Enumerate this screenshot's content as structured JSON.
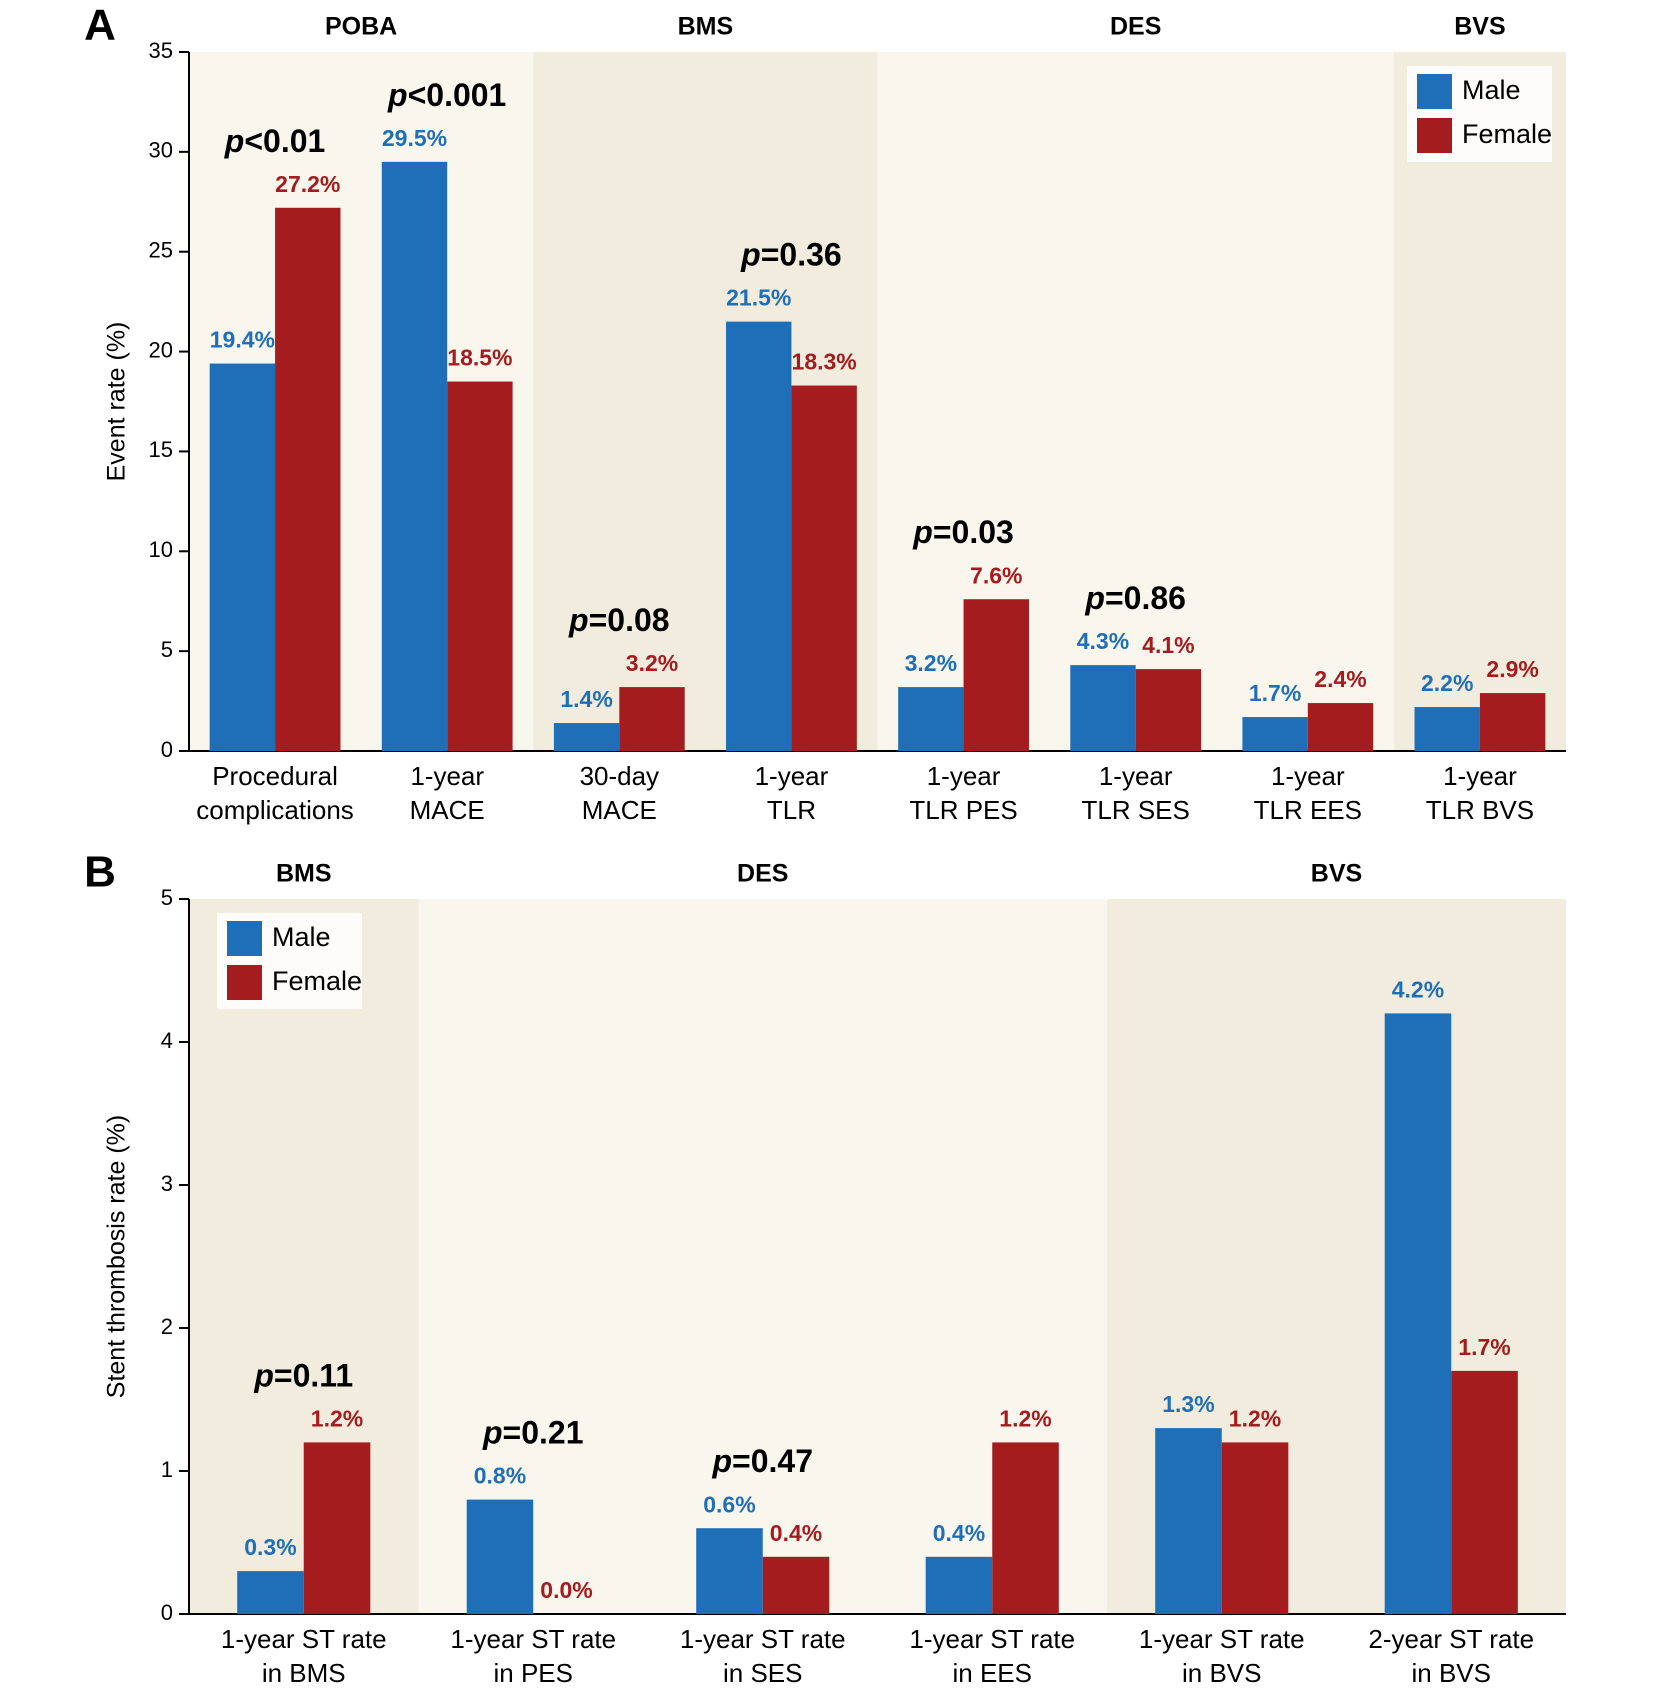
{
  "chart_data": [
    {
      "type": "bar",
      "panel": "A",
      "ylabel": "Event rate (%)",
      "groups": [
        {
          "label": "POBA",
          "color": "#f9f6ee",
          "categories": [
            [
              "Procedural",
              "complications"
            ],
            [
              "1-year",
              "MACE"
            ]
          ]
        },
        {
          "label": "BMS",
          "color": "#f1ecdd",
          "categories": [
            [
              "30-day",
              "MACE"
            ],
            [
              "1-year",
              "TLR"
            ]
          ]
        },
        {
          "label": "DES",
          "color": "#f9f6ee",
          "categories": [
            [
              "1-year",
              "TLR PES"
            ],
            [
              "1-year",
              "TLR SES"
            ],
            [
              "1-year",
              "TLR EES"
            ]
          ]
        },
        {
          "label": "BVS",
          "color": "#f1ecdd",
          "categories": [
            [
              "1-year",
              "TLR BVS"
            ]
          ]
        }
      ],
      "series": [
        {
          "name": "Male",
          "color": "#1f6fb8",
          "values": [
            19.4,
            29.5,
            1.4,
            21.5,
            3.2,
            4.3,
            1.7,
            2.2
          ],
          "value_labels": [
            "19.4%",
            "29.5%",
            "1.4%",
            "21.5%",
            "3.2%",
            "4.3%",
            "1.7%",
            "2.2%"
          ]
        },
        {
          "name": "Female",
          "color": "#a51c1e",
          "values": [
            27.2,
            18.5,
            3.2,
            18.3,
            7.6,
            4.1,
            2.4,
            2.9
          ],
          "value_labels": [
            "27.2%",
            "18.5%",
            "3.2%",
            "18.3%",
            "7.6%",
            "4.1%",
            "2.4%",
            "2.9%"
          ]
        }
      ],
      "annotations": [
        "p<0.01",
        "p<0.001",
        "p=0.08",
        "p=0.36",
        "p=0.03",
        "p=0.86",
        null,
        null
      ],
      "ylim": [
        0,
        35
      ],
      "yticks": [
        0,
        5,
        10,
        15,
        20,
        25,
        30,
        35
      ],
      "legend": "top-right"
    },
    {
      "type": "bar",
      "panel": "B",
      "ylabel": "Stent thrombosis rate (%)",
      "groups": [
        {
          "label": "BMS",
          "color": "#f1ecdd",
          "categories": [
            [
              "1-year ST rate",
              "in BMS"
            ]
          ]
        },
        {
          "label": "DES",
          "color": "#f9f6ee",
          "categories": [
            [
              "1-year ST rate",
              "in PES"
            ],
            [
              "1-year ST rate",
              "in SES"
            ],
            [
              "1-year ST rate",
              "in EES"
            ]
          ]
        },
        {
          "label": "BVS",
          "color": "#f1ecdd",
          "categories": [
            [
              "1-year ST rate",
              "in BVS"
            ],
            [
              "2-year ST rate",
              "in BVS"
            ]
          ]
        }
      ],
      "series": [
        {
          "name": "Male",
          "color": "#1f6fb8",
          "values": [
            0.3,
            0.8,
            0.6,
            0.4,
            1.3,
            4.2
          ],
          "value_labels": [
            "0.3%",
            "0.8%",
            "0.6%",
            "0.4%",
            "1.3%",
            "4.2%"
          ]
        },
        {
          "name": "Female",
          "color": "#a51c1e",
          "values": [
            1.2,
            0.0,
            0.4,
            1.2,
            1.2,
            1.7
          ],
          "value_labels": [
            "1.2%",
            "0.0%",
            "0.4%",
            "1.2%",
            "1.2%",
            "1.7%"
          ]
        }
      ],
      "annotations": [
        "p=0.11",
        "p=0.21",
        "p=0.47",
        null,
        null,
        null
      ],
      "ylim": [
        0,
        5
      ],
      "yticks": [
        0,
        1,
        2,
        3,
        4,
        5
      ],
      "legend": "top-left"
    }
  ]
}
